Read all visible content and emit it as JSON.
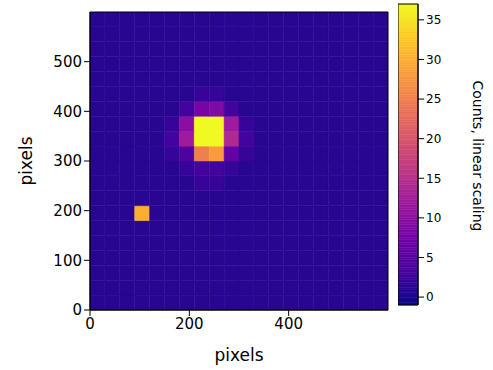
{
  "chart_data": {
    "type": "heatmap",
    "x_label": "pixels",
    "y_label": "pixels",
    "xlim": [
      0,
      600
    ],
    "ylim": [
      0,
      600
    ],
    "xticks": [
      0,
      200,
      400
    ],
    "yticks": [
      0,
      100,
      200,
      300,
      400,
      500
    ],
    "color": "plasma",
    "x_bins": [
      0,
      30,
      60,
      90,
      120,
      150,
      180,
      210,
      240,
      270,
      300,
      330,
      360,
      390,
      420,
      450,
      480,
      510,
      540,
      570,
      600
    ],
    "y_bins": [
      0,
      30,
      60,
      90,
      120,
      150,
      180,
      210,
      240,
      270,
      300,
      330,
      360,
      390,
      420,
      450,
      480,
      510,
      540,
      570,
      600
    ],
    "cells": [
      [
        1,
        1,
        1,
        1,
        1,
        1,
        1,
        1,
        1,
        1,
        1,
        1,
        1,
        1,
        1,
        1,
        1,
        1,
        1,
        1
      ],
      [
        1,
        1,
        1,
        1,
        1,
        1,
        1,
        1,
        1,
        1,
        1,
        1,
        1,
        1,
        1,
        1,
        1,
        1,
        1,
        1
      ],
      [
        1,
        1,
        1,
        1,
        1,
        1,
        1,
        1,
        1,
        1,
        1,
        1,
        1,
        1,
        1,
        1,
        1,
        1,
        1,
        1
      ],
      [
        1,
        1,
        1,
        1,
        1,
        1,
        1,
        1,
        1,
        1,
        1,
        1,
        1,
        1,
        1,
        1,
        1,
        1,
        1,
        1
      ],
      [
        1,
        1,
        1,
        1,
        1,
        1,
        1,
        1,
        1,
        1,
        1,
        1,
        1,
        1,
        1,
        1,
        1,
        1,
        1,
        1
      ],
      [
        1,
        1,
        1,
        1,
        1,
        1,
        1,
        1,
        1,
        1,
        1,
        1,
        1,
        1,
        1,
        1,
        1,
        1,
        1,
        1
      ],
      [
        1,
        1,
        1,
        30,
        1,
        1,
        1,
        1,
        1,
        1,
        1,
        1,
        1,
        1,
        1,
        1,
        1,
        1,
        1,
        1
      ],
      [
        1,
        1,
        1,
        1,
        1,
        1,
        1,
        1,
        1,
        1,
        1,
        1,
        1,
        1,
        1,
        1,
        1,
        1,
        1,
        1
      ],
      [
        1,
        1,
        1,
        1,
        1,
        1,
        1,
        2,
        2,
        1,
        1,
        1,
        1,
        1,
        1,
        1,
        1,
        1,
        1,
        1
      ],
      [
        1,
        1,
        1,
        1,
        1,
        1,
        2,
        3,
        3,
        2,
        1,
        1,
        1,
        1,
        1,
        1,
        1,
        1,
        1,
        1
      ],
      [
        1,
        1,
        1,
        1,
        1,
        2,
        4,
        25,
        28,
        6,
        2,
        1,
        1,
        1,
        1,
        1,
        1,
        1,
        1,
        1
      ],
      [
        1,
        1,
        1,
        1,
        1,
        3,
        12,
        37,
        37,
        14,
        3,
        1,
        1,
        1,
        1,
        1,
        1,
        1,
        1,
        1
      ],
      [
        1,
        1,
        1,
        1,
        1,
        2,
        10,
        37,
        37,
        12,
        2,
        1,
        1,
        1,
        1,
        1,
        1,
        1,
        1,
        1
      ],
      [
        1,
        1,
        1,
        1,
        1,
        1,
        3,
        8,
        9,
        3,
        1,
        1,
        1,
        1,
        1,
        1,
        1,
        1,
        1,
        1
      ],
      [
        1,
        1,
        1,
        1,
        1,
        1,
        1,
        2,
        2,
        1,
        1,
        1,
        1,
        1,
        1,
        1,
        1,
        1,
        1,
        1
      ],
      [
        1,
        1,
        1,
        1,
        1,
        1,
        1,
        1,
        1,
        1,
        1,
        1,
        1,
        1,
        1,
        1,
        1,
        1,
        1,
        1
      ],
      [
        1,
        1,
        1,
        1,
        1,
        1,
        1,
        1,
        1,
        1,
        1,
        1,
        1,
        1,
        1,
        1,
        1,
        1,
        1,
        1
      ],
      [
        1,
        1,
        1,
        1,
        1,
        1,
        1,
        1,
        1,
        1,
        1,
        1,
        1,
        1,
        1,
        1,
        1,
        1,
        1,
        1
      ],
      [
        1,
        1,
        1,
        1,
        1,
        1,
        1,
        1,
        1,
        1,
        1,
        1,
        1,
        1,
        1,
        1,
        1,
        1,
        1,
        1
      ],
      [
        1,
        1,
        1,
        1,
        1,
        1,
        1,
        1,
        1,
        1,
        1,
        1,
        1,
        1,
        1,
        1,
        1,
        1,
        1,
        1
      ]
    ],
    "colorbar": {
      "label": "Counts, linear scaling",
      "range": [
        -1,
        37
      ],
      "ticks": [
        0,
        5,
        10,
        15,
        20,
        25,
        30,
        35
      ]
    }
  }
}
